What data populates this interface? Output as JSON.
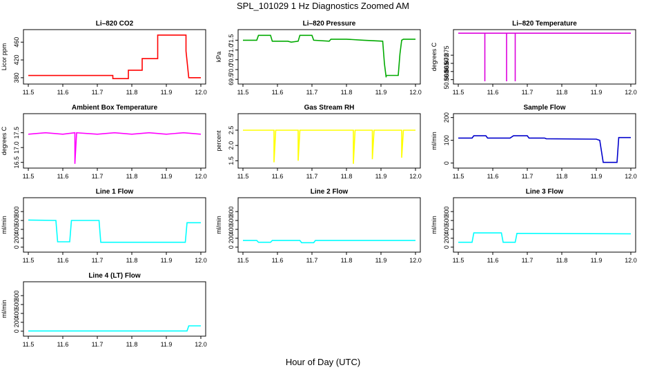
{
  "title": "SPL_101029  1 Hz Diagnostics Zoomed AM",
  "xlabel": "Hour of Day (UTC)",
  "chart_data": [
    {
      "type": "line",
      "title": "Li–820 CO2",
      "xlabel": "",
      "ylabel": "Licor ppm",
      "color": "#ff0000",
      "xlim": [
        11.5,
        12.0
      ],
      "ylim": [
        372,
        482
      ],
      "xticks": [
        "11.5",
        "11.6",
        "11.7",
        "11.8",
        "11.9",
        "12.0"
      ],
      "yticks": [
        "380",
        "420",
        "460"
      ],
      "series": [
        {
          "x": [
            11.5,
            11.745,
            11.745,
            11.79,
            11.79,
            11.83,
            11.83,
            11.875,
            11.875,
            11.957,
            11.957,
            11.965,
            11.965,
            12.0
          ],
          "y": [
            385,
            385,
            378,
            378,
            397,
            397,
            423,
            423,
            476,
            476,
            440,
            380,
            380,
            380
          ]
        }
      ]
    },
    {
      "type": "line",
      "title": "Li–820 Pressure",
      "xlabel": "",
      "ylabel": "kPa",
      "color": "#00aa00",
      "xlim": [
        11.5,
        12.0
      ],
      "ylim": [
        69.4,
        71.9
      ],
      "xticks": [
        "11.5",
        "11.6",
        "11.7",
        "11.8",
        "11.9",
        "12.0"
      ],
      "yticks": [
        "69.5",
        "70.0",
        "70.5",
        "71.0",
        "71.5"
      ],
      "series": [
        {
          "x": [
            11.5,
            11.54,
            11.545,
            11.58,
            11.585,
            11.63,
            11.64,
            11.66,
            11.665,
            11.7,
            11.705,
            11.75,
            11.755,
            11.8,
            11.85,
            11.905,
            11.91,
            11.915,
            11.915,
            11.95,
            11.955,
            11.96,
            11.965,
            12.0
          ],
          "y": [
            71.5,
            71.5,
            71.75,
            71.75,
            71.45,
            71.45,
            71.4,
            71.45,
            71.75,
            71.75,
            71.5,
            71.45,
            71.55,
            71.55,
            71.5,
            71.45,
            70.3,
            69.6,
            69.7,
            69.7,
            70.8,
            71.5,
            71.55,
            71.55
          ]
        }
      ]
    },
    {
      "type": "line",
      "title": "Li–820 Temperature",
      "xlabel": "",
      "ylabel": "degrees C",
      "color": "#dd00dd",
      "xlim": [
        11.5,
        12.0
      ],
      "ylim": [
        50.859,
        50.889
      ],
      "xticks": [
        "11.5",
        "11.6",
        "11.7",
        "11.8",
        "11.9",
        "12.0"
      ],
      "yticks": [
        "50.860",
        "50.865",
        "50.870",
        "50.875"
      ],
      "series": [
        {
          "x": [
            11.5,
            11.577,
            11.577,
            11.577,
            11.64,
            11.64,
            11.64,
            11.665,
            11.665,
            11.665,
            12.0
          ],
          "y": [
            50.8885,
            50.8885,
            50.859,
            50.8885,
            50.8885,
            50.859,
            50.8885,
            50.8885,
            50.859,
            50.8885,
            50.8885
          ]
        }
      ]
    },
    {
      "type": "line",
      "title": "Ambient Box Temperature",
      "xlabel": "",
      "ylabel": "degrees C",
      "color": "#ff00ff",
      "xlim": [
        11.5,
        12.0
      ],
      "ylim": [
        16.4,
        18.05
      ],
      "xticks": [
        "11.5",
        "11.6",
        "11.7",
        "11.8",
        "11.9",
        "12.0"
      ],
      "yticks": [
        "16.5",
        "17.0",
        "17.5"
      ],
      "series": [
        {
          "x": [
            11.5,
            11.55,
            11.6,
            11.635,
            11.635,
            11.64,
            11.7,
            11.75,
            11.8,
            11.85,
            11.9,
            11.95,
            12.0
          ],
          "y": [
            17.45,
            17.5,
            17.45,
            17.5,
            16.45,
            17.5,
            17.45,
            17.5,
            17.45,
            17.5,
            17.45,
            17.5,
            17.45
          ]
        }
      ]
    },
    {
      "type": "line",
      "title": "Gas Stream RH",
      "xlabel": "",
      "ylabel": "percent",
      "color": "#ffff00",
      "xlim": [
        11.5,
        12.0
      ],
      "ylim": [
        1.35,
        2.95
      ],
      "xticks": [
        "11.5",
        "11.6",
        "11.7",
        "11.8",
        "11.9",
        "12.0"
      ],
      "yticks": [
        "1.5",
        "2.0",
        "2.5"
      ],
      "series": [
        {
          "x": [
            11.5,
            11.59,
            11.59,
            11.595,
            11.66,
            11.66,
            11.665,
            11.82,
            11.82,
            11.825,
            11.875,
            11.875,
            11.88,
            11.96,
            11.96,
            11.965,
            12.0
          ],
          "y": [
            2.5,
            2.5,
            1.45,
            2.5,
            2.5,
            1.5,
            2.5,
            2.5,
            1.4,
            2.5,
            2.5,
            1.55,
            2.5,
            2.5,
            1.6,
            2.5,
            2.5
          ]
        }
      ]
    },
    {
      "type": "line",
      "title": "Sample Flow",
      "xlabel": "",
      "ylabel": "ml/min",
      "color": "#0000cc",
      "xlim": [
        11.5,
        12.0
      ],
      "ylim": [
        -10,
        205
      ],
      "xticks": [
        "11.5",
        "11.6",
        "11.7",
        "11.8",
        "11.9",
        "12.0"
      ],
      "yticks": [
        "0",
        "100",
        "200"
      ],
      "series": [
        {
          "x": [
            11.5,
            11.54,
            11.545,
            11.58,
            11.585,
            11.65,
            11.66,
            11.7,
            11.705,
            11.75,
            11.755,
            11.9,
            11.91,
            11.92,
            11.96,
            11.965,
            12.0
          ],
          "y": [
            110,
            110,
            120,
            120,
            110,
            110,
            120,
            120,
            110,
            110,
            107,
            105,
            100,
            3,
            3,
            112,
            112
          ]
        }
      ]
    },
    {
      "type": "line",
      "title": "Line 1 Flow",
      "xlabel": "",
      "ylabel": "ml/min",
      "color": "#00ffff",
      "xlim": [
        11.5,
        12.0
      ],
      "ylim": [
        -50,
        1050
      ],
      "xticks": [
        "11.5",
        "11.6",
        "11.7",
        "11.8",
        "11.9",
        "12.0"
      ],
      "yticks": [
        "0",
        "200",
        "400",
        "600",
        "800"
      ],
      "series": [
        {
          "x": [
            11.5,
            11.58,
            11.585,
            11.62,
            11.625,
            11.705,
            11.71,
            11.955,
            11.96,
            12.0
          ],
          "y": [
            610,
            600,
            120,
            120,
            600,
            600,
            110,
            110,
            550,
            550
          ]
        }
      ]
    },
    {
      "type": "line",
      "title": "Line 2 Flow",
      "xlabel": "",
      "ylabel": "ml/min",
      "color": "#00ffff",
      "xlim": [
        11.5,
        12.0
      ],
      "ylim": [
        -50,
        1050
      ],
      "xticks": [
        "11.5",
        "11.6",
        "11.7",
        "11.8",
        "11.9",
        "12.0"
      ],
      "yticks": [
        "0",
        "200",
        "400",
        "600",
        "800"
      ],
      "series": [
        {
          "x": [
            11.5,
            11.54,
            11.545,
            11.58,
            11.585,
            11.665,
            11.67,
            11.705,
            11.71,
            12.0
          ],
          "y": [
            150,
            150,
            110,
            110,
            150,
            150,
            100,
            100,
            150,
            150
          ]
        }
      ]
    },
    {
      "type": "line",
      "title": "Line 3 Flow",
      "xlabel": "",
      "ylabel": "ml/min",
      "color": "#00ffff",
      "xlim": [
        11.5,
        12.0
      ],
      "ylim": [
        -50,
        1050
      ],
      "xticks": [
        "11.5",
        "11.6",
        "11.7",
        "11.8",
        "11.9",
        "12.0"
      ],
      "yticks": [
        "0",
        "200",
        "400",
        "600",
        "800"
      ],
      "series": [
        {
          "x": [
            11.5,
            11.54,
            11.545,
            11.625,
            11.63,
            11.665,
            11.67,
            12.0
          ],
          "y": [
            110,
            110,
            320,
            320,
            110,
            110,
            310,
            300
          ]
        }
      ]
    },
    {
      "type": "line",
      "title": "Line 4 (LT) Flow",
      "xlabel": "",
      "ylabel": "ml/min",
      "color": "#00ffff",
      "xlim": [
        11.5,
        12.0
      ],
      "ylim": [
        -50,
        1050
      ],
      "xticks": [
        "11.5",
        "11.6",
        "11.7",
        "11.8",
        "11.9",
        "12.0"
      ],
      "yticks": [
        "0",
        "200",
        "400",
        "600",
        "800"
      ],
      "series": [
        {
          "x": [
            11.5,
            11.96,
            11.965,
            12.0
          ],
          "y": [
            5,
            5,
            120,
            120
          ]
        }
      ]
    }
  ]
}
